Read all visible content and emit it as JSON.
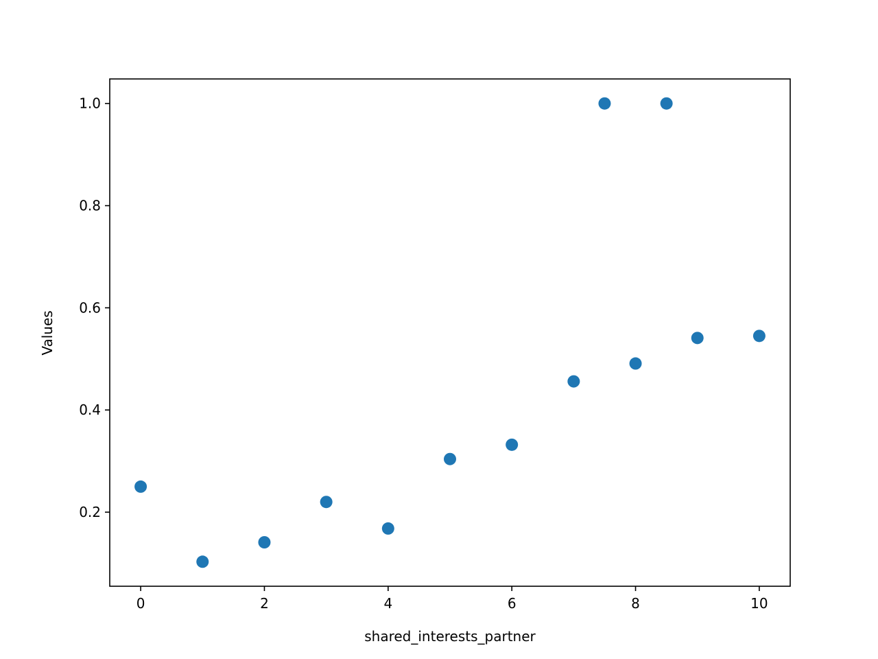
{
  "chart_data": {
    "type": "scatter",
    "title": "",
    "xlabel": "shared_interests_partner",
    "ylabel": "Values",
    "xlim": [
      -0.5,
      10.5
    ],
    "ylim": [
      0.055,
      1.048
    ],
    "xticks": [
      0,
      2,
      4,
      6,
      8,
      10
    ],
    "xtick_labels": [
      "0",
      "2",
      "4",
      "6",
      "8",
      "10"
    ],
    "yticks": [
      0.2,
      0.4,
      0.6,
      0.8,
      1.0
    ],
    "ytick_labels": [
      "0.2",
      "0.4",
      "0.6",
      "0.8",
      "1.0"
    ],
    "grid": false,
    "legend": "none",
    "color": "#1f77b4",
    "points": [
      {
        "x": 0,
        "y": 0.25
      },
      {
        "x": 1,
        "y": 0.103
      },
      {
        "x": 2,
        "y": 0.141
      },
      {
        "x": 3,
        "y": 0.22
      },
      {
        "x": 4,
        "y": 0.168
      },
      {
        "x": 5,
        "y": 0.304
      },
      {
        "x": 6,
        "y": 0.332
      },
      {
        "x": 7,
        "y": 0.456
      },
      {
        "x": 7.5,
        "y": 1.0
      },
      {
        "x": 8,
        "y": 0.491
      },
      {
        "x": 8.5,
        "y": 1.0
      },
      {
        "x": 9,
        "y": 0.541
      },
      {
        "x": 10,
        "y": 0.545
      }
    ]
  }
}
